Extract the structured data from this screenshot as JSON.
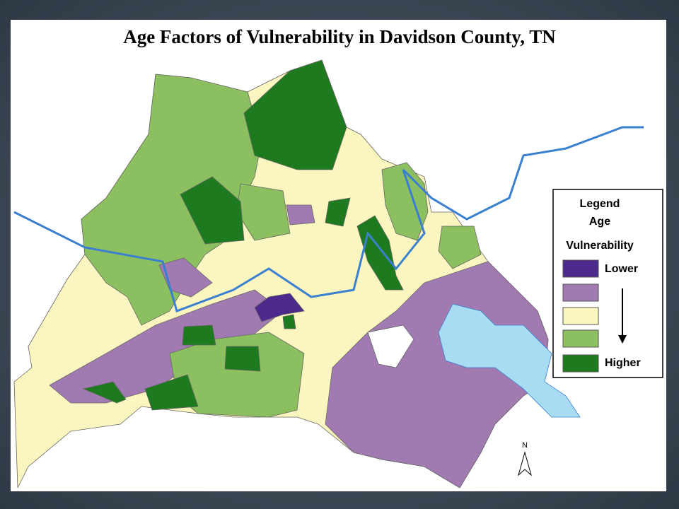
{
  "title": "Age Factors of Vulnerability in Davidson County, TN",
  "legend": {
    "title": "Legend",
    "subtitle": "Age",
    "heading": "Vulnerability",
    "low_label": "Lower",
    "high_label": "Higher",
    "colors": [
      "#4b2a8c",
      "#a07ab0",
      "#fbf6c0",
      "#8cbf5f",
      "#1e7a1e"
    ]
  },
  "water_color": "#a8dcf2",
  "north": "N"
}
